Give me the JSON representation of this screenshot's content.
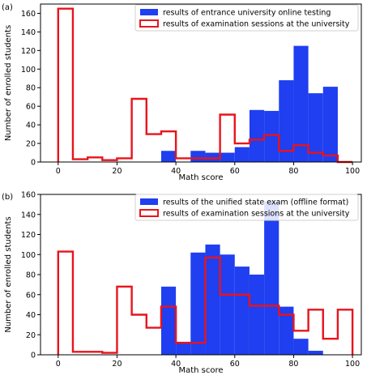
{
  "chart_data": [
    {
      "type": "bar",
      "panel_label": "(a)",
      "xlabel": "Math score",
      "ylabel": "Number of enrolled students",
      "xlim": [
        -6,
        103
      ],
      "ylim": [
        0,
        170
      ],
      "xticks": [
        0,
        20,
        40,
        60,
        80,
        100
      ],
      "yticks": [
        0,
        20,
        40,
        60,
        80,
        100,
        120,
        140,
        160
      ],
      "bin_edges": [
        0,
        5,
        10,
        15,
        20,
        25,
        30,
        35,
        40,
        45,
        50,
        55,
        60,
        65,
        70,
        75,
        80,
        85,
        90,
        95,
        100
      ],
      "legend_position": "top-right",
      "series": [
        {
          "name": "results of entrance university online testing",
          "style": "filled",
          "color": "#1f3ff0",
          "values": [
            0,
            0,
            0,
            0,
            0,
            0,
            0,
            12,
            0,
            12,
            10,
            10,
            16,
            56,
            55,
            88,
            125,
            74,
            81,
            0
          ]
        },
        {
          "name": "results of examination sessions at the university",
          "style": "step",
          "color": "#e8141c",
          "values": [
            165,
            3,
            5,
            2,
            4,
            68,
            30,
            33,
            4,
            4,
            4,
            51,
            20,
            24,
            29,
            12,
            18,
            10,
            7,
            0
          ]
        }
      ]
    },
    {
      "type": "bar",
      "panel_label": "(b)",
      "xlabel": "Math score",
      "ylabel": "Number of enrolled students",
      "xlim": [
        -6,
        103
      ],
      "ylim": [
        0,
        160
      ],
      "xticks": [
        0,
        20,
        40,
        60,
        80,
        100
      ],
      "yticks": [
        0,
        20,
        40,
        60,
        80,
        100,
        120,
        140,
        160
      ],
      "bin_edges": [
        0,
        5,
        10,
        15,
        20,
        25,
        30,
        35,
        40,
        45,
        50,
        55,
        60,
        65,
        70,
        75,
        80,
        85,
        90,
        95,
        100
      ],
      "legend_position": "top-right",
      "series": [
        {
          "name": "results of the unified state exam (offline format)",
          "style": "filled",
          "color": "#1f3ff0",
          "values": [
            0,
            0,
            0,
            0,
            0,
            0,
            0,
            68,
            13,
            102,
            110,
            100,
            88,
            80,
            153,
            48,
            16,
            4,
            0,
            0
          ]
        },
        {
          "name": "results of examination sessions at the university",
          "style": "step",
          "color": "#e8141c",
          "values": [
            103,
            3,
            3,
            2,
            68,
            40,
            27,
            48,
            12,
            12,
            97,
            60,
            60,
            49,
            49,
            40,
            24,
            45,
            16,
            45
          ]
        }
      ]
    }
  ]
}
